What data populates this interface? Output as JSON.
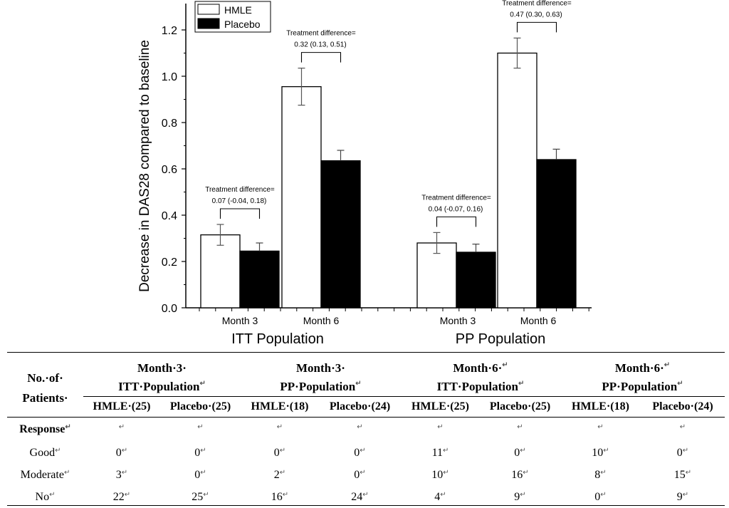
{
  "chart_data": {
    "type": "bar",
    "ylabel": "Decrease in DAS28 compared to baseline",
    "ylim": [
      0,
      1.3
    ],
    "yticks": [
      "0.0",
      "0.2",
      "0.4",
      "0.6",
      "0.8",
      "1.0",
      "1.2"
    ],
    "legend": {
      "position": "top-left",
      "entries": [
        "HMLE",
        "Placebo"
      ]
    },
    "colors": {
      "HMLE": "#ffffff",
      "Placebo": "#000000"
    },
    "groups": [
      {
        "name": "ITT Population",
        "categories": [
          {
            "label": "Month 3",
            "HMLE": 0.315,
            "HMLE_err": 0.045,
            "Placebo": 0.245,
            "Placebo_err": 0.035,
            "diff_title": "Treatment difference=",
            "diff_value": "0.07 (-0.04, 0.18)"
          },
          {
            "label": "Month 6",
            "HMLE": 0.955,
            "HMLE_err": 0.08,
            "Placebo": 0.635,
            "Placebo_err": 0.045,
            "diff_title": "Treatment difference=",
            "diff_value": "0.32 (0.13, 0.51)"
          }
        ]
      },
      {
        "name": "PP Population",
        "categories": [
          {
            "label": "Month 3",
            "HMLE": 0.28,
            "HMLE_err": 0.045,
            "Placebo": 0.24,
            "Placebo_err": 0.035,
            "diff_title": "Treatment difference=",
            "diff_value": "0.04 (-0.07, 0.16)"
          },
          {
            "label": "Month 6",
            "HMLE": 1.1,
            "HMLE_err": 0.065,
            "Placebo": 0.64,
            "Placebo_err": 0.045,
            "diff_title": "Treatment difference=",
            "diff_value": "0.47 (0.30, 0.63)"
          }
        ]
      }
    ]
  },
  "table": {
    "corner": [
      "No.·of·",
      "Patients·"
    ],
    "months": [
      "Month·3·",
      "Month·3·",
      "Month·6·",
      "Month·6·"
    ],
    "populations": [
      "ITT·Population",
      "PP·Population",
      "ITT·Population",
      "PP·Population"
    ],
    "columns": [
      "HMLE·(25)",
      "Placebo·(25)",
      "HMLE·(18)",
      "Placebo·(24)",
      "HMLE·(25)",
      "Placebo·(25)",
      "HMLE·(18)",
      "Placebo·(24)"
    ],
    "response_label": "Response",
    "rows": [
      {
        "label": "Good",
        "values": [
          "0",
          "0",
          "0",
          "0",
          "11",
          "0",
          "10",
          "0"
        ]
      },
      {
        "label": "Moderate",
        "values": [
          "3",
          "0",
          "2",
          "0",
          "10",
          "16",
          "8",
          "15"
        ]
      },
      {
        "label": "No",
        "values": [
          "22",
          "25",
          "16",
          "24",
          "4",
          "9",
          "0",
          "9"
        ]
      }
    ],
    "mark": "↵"
  }
}
